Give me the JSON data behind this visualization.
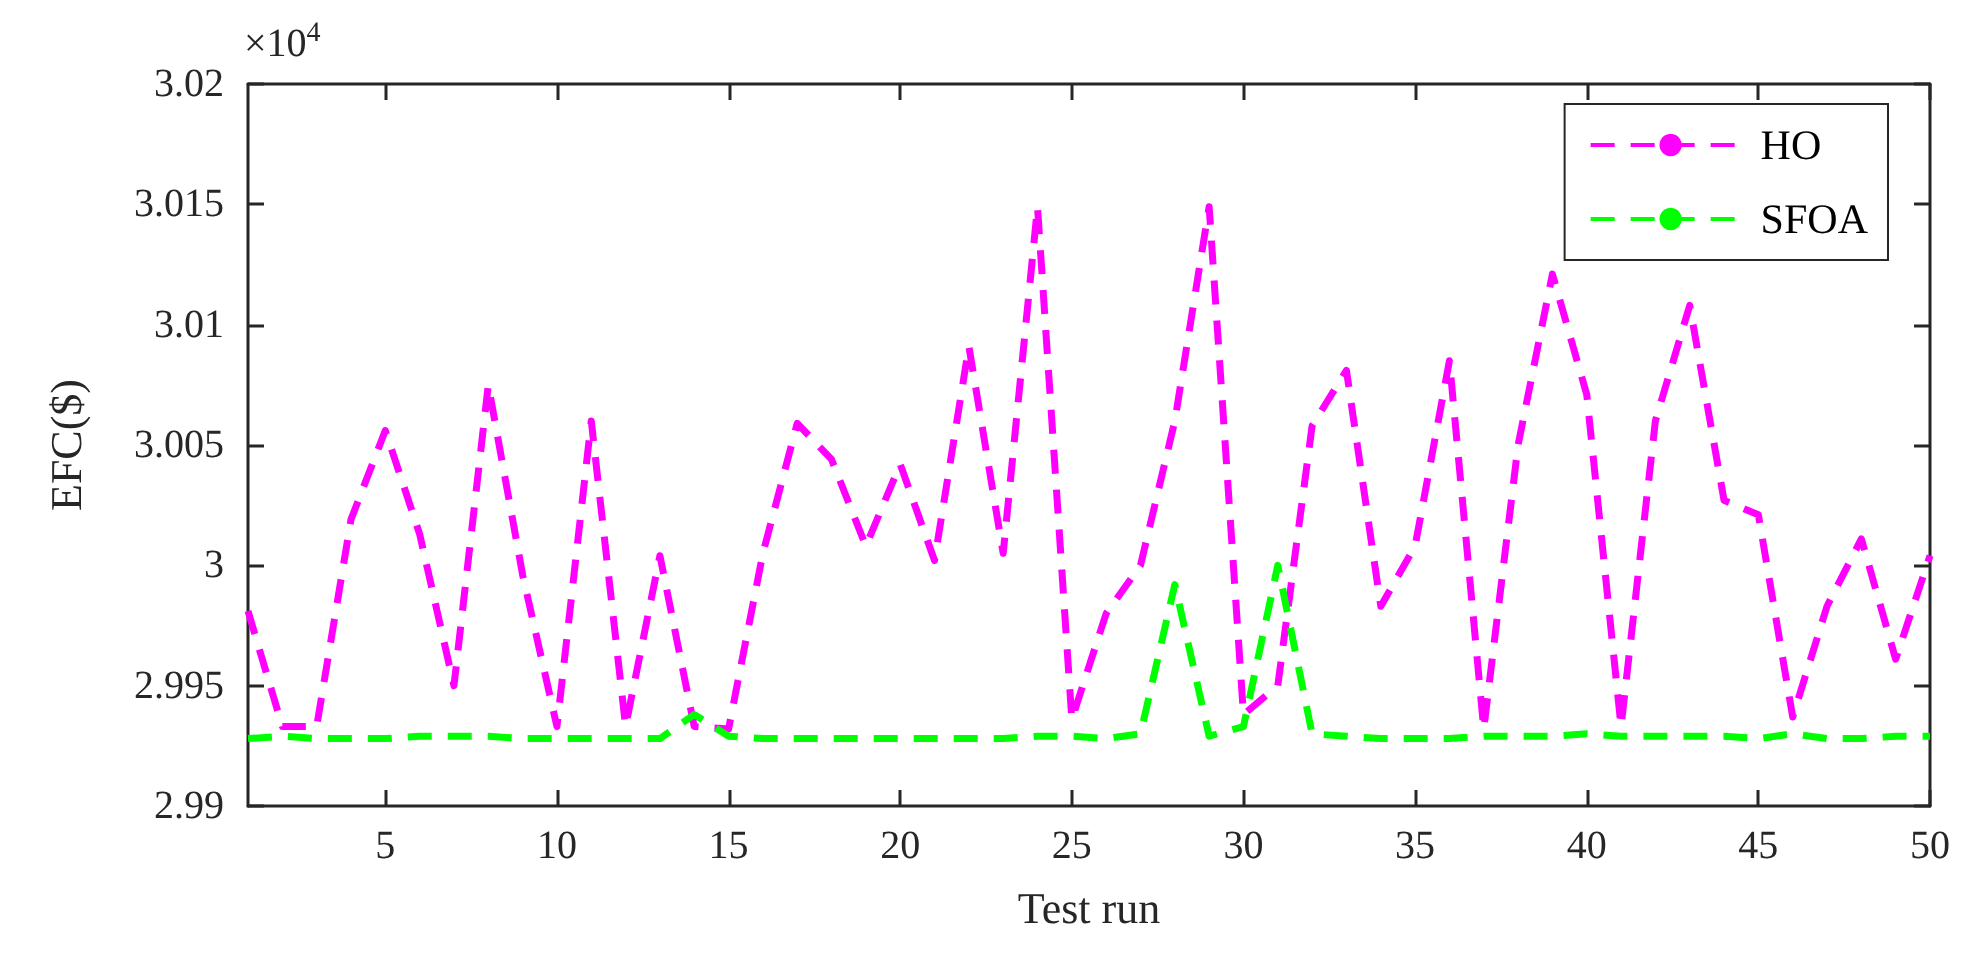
{
  "chart_data": {
    "type": "line",
    "xlabel": "Test run",
    "ylabel": "EFC($)",
    "annotations": [
      "×10$^{4}$"
    ],
    "x": [
      1,
      2,
      3,
      4,
      5,
      6,
      7,
      8,
      9,
      10,
      11,
      12,
      13,
      14,
      15,
      16,
      17,
      18,
      19,
      20,
      21,
      22,
      23,
      24,
      25,
      26,
      27,
      28,
      29,
      30,
      31,
      32,
      33,
      34,
      35,
      36,
      37,
      38,
      39,
      40,
      41,
      42,
      43,
      44,
      45,
      46,
      47,
      48,
      49,
      50
    ],
    "series": [
      {
        "name": "HO",
        "color": "#ff00ff",
        "values": [
          2.9981,
          2.9933,
          2.9933,
          3.0019,
          3.0056,
          3.0013,
          2.995,
          3.0075,
          2.9996,
          2.9933,
          3.006,
          2.9933,
          3.0004,
          2.9933,
          2.9932,
          3.0005,
          3.0059,
          3.0044,
          3.0008,
          3.0042,
          3.0002,
          3.0091,
          3.0005,
          3.0149,
          2.9936,
          2.998,
          3.0,
          3.006,
          3.0149,
          2.9938,
          2.995,
          3.0058,
          3.0081,
          2.9983,
          3.0008,
          3.0085,
          2.9932,
          3.005,
          3.0121,
          3.0071,
          2.9933,
          3.006,
          3.0108,
          3.0027,
          3.0021,
          2.9937,
          2.9983,
          3.0011,
          2.9961,
          3.0004
        ]
      },
      {
        "name": "SFOA",
        "color": "#00ff00",
        "values": [
          2.9928,
          2.9929,
          2.9928,
          2.9928,
          2.9928,
          2.9929,
          2.9929,
          2.9929,
          2.9928,
          2.9928,
          2.9928,
          2.9928,
          2.9928,
          2.9938,
          2.9929,
          2.9928,
          2.9928,
          2.9928,
          2.9928,
          2.9928,
          2.9928,
          2.9928,
          2.9928,
          2.9929,
          2.9929,
          2.9928,
          2.993,
          2.9992,
          2.9929,
          2.9933,
          3.0,
          2.993,
          2.9929,
          2.9928,
          2.9928,
          2.9928,
          2.9929,
          2.9929,
          2.9929,
          2.993,
          2.9929,
          2.9929,
          2.9929,
          2.9929,
          2.9928,
          2.993,
          2.9928,
          2.9928,
          2.9929,
          2.9929
        ]
      }
    ],
    "xlim": [
      1,
      50
    ],
    "xticks": [
      5,
      10,
      15,
      20,
      25,
      30,
      35,
      40,
      45,
      50
    ],
    "ylim": [
      2.99,
      3.02
    ],
    "yticks": [
      2.99,
      2.995,
      3,
      3.005,
      3.01,
      3.015,
      3.02
    ],
    "grid": false,
    "legend": "top right",
    "marker": "none",
    "line_style": "dashed"
  }
}
